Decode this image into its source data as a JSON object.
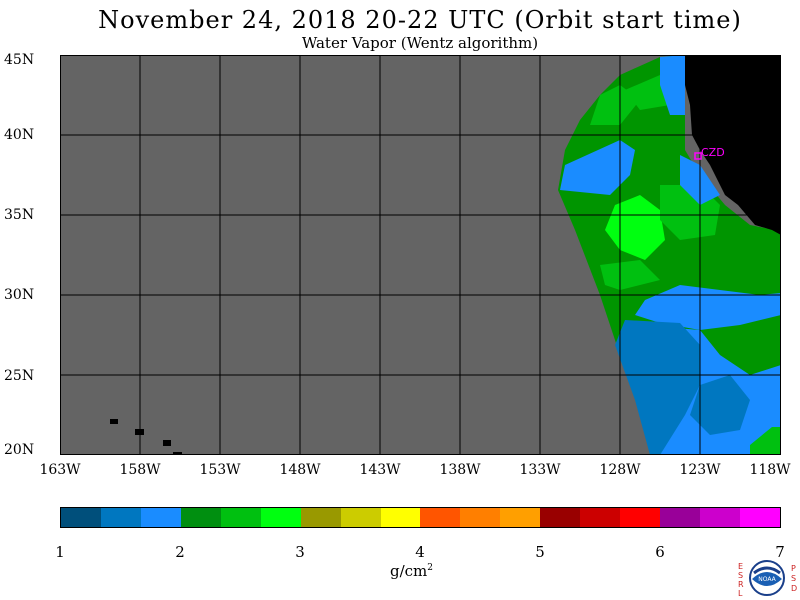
{
  "header": {
    "title": "November 24, 2018  20-22 UTC  (Orbit start time)",
    "subtitle": "Water Vapor (Wentz algorithm)"
  },
  "map": {
    "lat_labels": [
      "45N",
      "40N",
      "35N",
      "30N",
      "25N",
      "20N"
    ],
    "lon_labels": [
      "163W",
      "158W",
      "153W",
      "148W",
      "143W",
      "138W",
      "133W",
      "128W",
      "123W",
      "118W"
    ],
    "station_label": "CZD",
    "colors": {
      "no_data": "#646464",
      "land": "#000000",
      "station": "#ff00ff",
      "grid": "#000000"
    }
  },
  "colorbar": {
    "tick_labels": [
      "1",
      "2",
      "3",
      "4",
      "5",
      "6",
      "7"
    ],
    "unit_main": "g/cm",
    "unit_exp": "2",
    "colors": [
      "#004f7b",
      "#0077c0",
      "#1a8cff",
      "#008f10",
      "#00c010",
      "#00ff10",
      "#999900",
      "#cccc00",
      "#ffff00",
      "#ff5500",
      "#ff7f00",
      "#ff9f00",
      "#990000",
      "#cc0000",
      "#ff0000",
      "#990099",
      "#cc00cc",
      "#ff00ff"
    ]
  },
  "logo": {
    "left_letters": "ESRL",
    "right_letters": "PSD",
    "center": "NOAA"
  }
}
